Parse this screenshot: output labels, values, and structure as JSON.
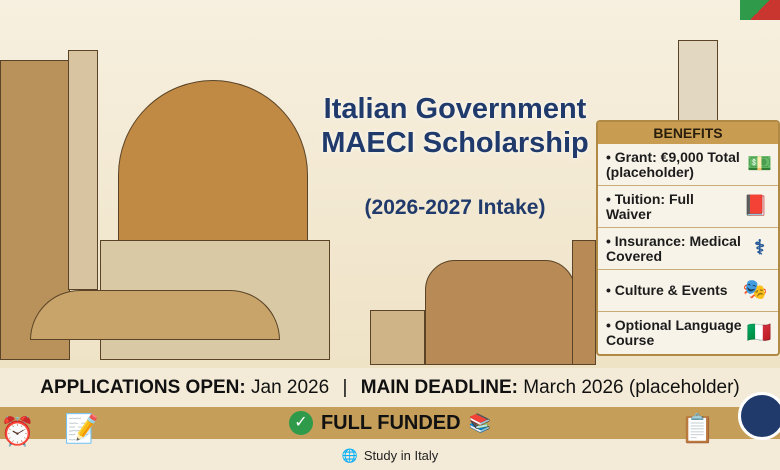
{
  "header": {
    "title": "Italian Government MAECI Scholarship",
    "subtitle": "(2026-2027 Intake)"
  },
  "benefits": {
    "heading": "BENEFITS",
    "items": [
      {
        "label": "• Grant: €9,000 Total (placeholder)",
        "icon": "money-icon"
      },
      {
        "label": "• Tuition: Full Waiver",
        "icon": "book-crossed-icon"
      },
      {
        "label": "• Insurance: Medical Covered",
        "icon": "caduceus-icon"
      },
      {
        "label": "• Culture & Events",
        "icon": "carnival-mask-icon"
      },
      {
        "label": "• Optional Language Course",
        "icon": "flags-swap-icon"
      }
    ]
  },
  "dates": {
    "open_label": "APPLICATIONS OPEN:",
    "open_value": "Jan 2026",
    "separator": "|",
    "deadline_label": "MAIN DEADLINE:",
    "deadline_value": "March 2026 (placeholder)"
  },
  "band": {
    "label": "FULL FUNDED"
  },
  "footer": {
    "brand": "Study in Italy"
  },
  "colors": {
    "title": "#1f3a6b",
    "gold": "#c59f5a",
    "green": "#2f9a4a"
  }
}
